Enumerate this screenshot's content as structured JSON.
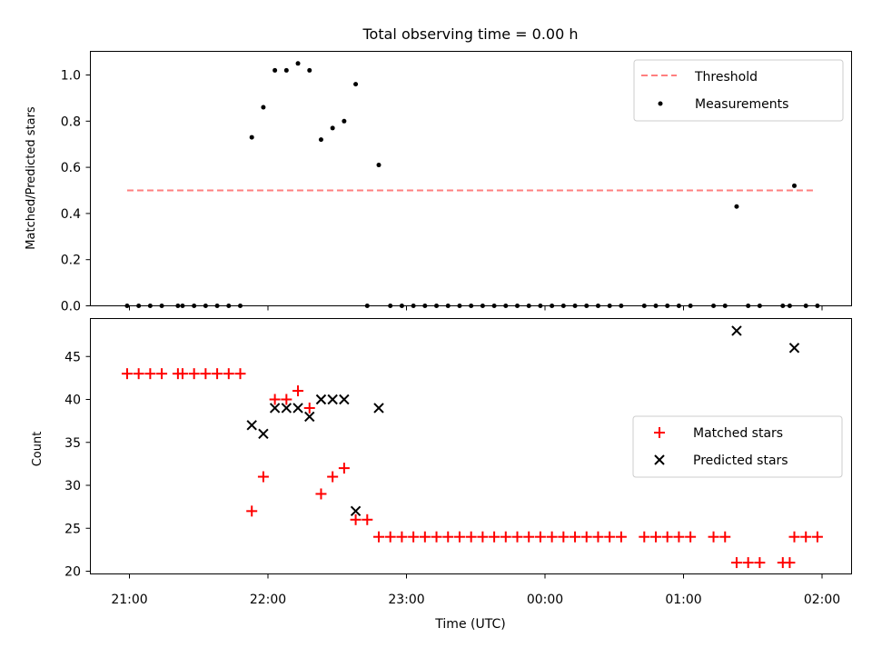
{
  "chart_data": [
    {
      "type": "scatter",
      "title": "Total observing time = 0.00 h",
      "xlabel": "",
      "ylabel": "Matched/Predicted stars",
      "ylim": [
        0,
        1.1
      ],
      "xlim": [
        "20:57",
        "02:07"
      ],
      "x_unit": "minutes after 21:00 UTC",
      "y_ticks": [
        "0.0",
        "0.2",
        "0.4",
        "0.6",
        "0.8",
        "1.0"
      ],
      "grid": false,
      "legend_position": "top-right",
      "threshold": {
        "name": "Threshold",
        "value": 0.5,
        "x_range": [
          -1,
          297
        ],
        "color": "#ff7f7f",
        "style": "dashed"
      },
      "series": [
        {
          "name": "Measurements",
          "color": "#000000",
          "points": [
            [
              -1,
              0
            ],
            [
              4,
              0
            ],
            [
              9,
              0
            ],
            [
              14,
              0
            ],
            [
              21,
              0
            ],
            [
              23,
              0
            ],
            [
              28,
              0
            ],
            [
              33,
              0
            ],
            [
              38,
              0
            ],
            [
              43,
              0
            ],
            [
              48,
              0
            ],
            [
              53,
              0.73
            ],
            [
              58,
              0.86
            ],
            [
              63,
              1.02
            ],
            [
              68,
              1.02
            ],
            [
              73,
              1.05
            ],
            [
              78,
              1.02
            ],
            [
              83,
              0.72
            ],
            [
              88,
              0.77
            ],
            [
              93,
              0.8
            ],
            [
              98,
              0.96
            ],
            [
              103,
              0
            ],
            [
              108,
              0.61
            ],
            [
              113,
              0
            ],
            [
              118,
              0
            ],
            [
              123,
              0
            ],
            [
              128,
              0
            ],
            [
              133,
              0
            ],
            [
              138,
              0
            ],
            [
              143,
              0
            ],
            [
              148,
              0
            ],
            [
              153,
              0
            ],
            [
              158,
              0
            ],
            [
              163,
              0
            ],
            [
              168,
              0
            ],
            [
              173,
              0
            ],
            [
              178,
              0
            ],
            [
              183,
              0
            ],
            [
              188,
              0
            ],
            [
              193,
              0
            ],
            [
              198,
              0
            ],
            [
              203,
              0
            ],
            [
              208,
              0
            ],
            [
              213,
              0
            ],
            [
              223,
              0
            ],
            [
              228,
              0
            ],
            [
              233,
              0
            ],
            [
              238,
              0
            ],
            [
              243,
              0
            ],
            [
              253,
              0
            ],
            [
              258,
              0
            ],
            [
              263,
              0.43
            ],
            [
              268,
              0
            ],
            [
              273,
              0
            ],
            [
              283,
              0
            ],
            [
              286,
              0
            ],
            [
              288,
              0.52
            ],
            [
              293,
              0
            ],
            [
              298,
              0
            ]
          ]
        }
      ]
    },
    {
      "type": "scatter",
      "title": "",
      "xlabel": "Time (UTC)",
      "ylabel": "Count",
      "ylim": [
        19.7,
        49.5
      ],
      "xlim": [
        "20:57",
        "02:07"
      ],
      "x_unit": "minutes after 21:00 UTC",
      "x_ticks": [
        "21:00",
        "22:00",
        "23:00",
        "00:00",
        "01:00",
        "02:00"
      ],
      "y_ticks": [
        "20",
        "25",
        "30",
        "35",
        "40",
        "45"
      ],
      "grid": false,
      "legend_position": "center-right",
      "series": [
        {
          "name": "Matched stars",
          "marker": "plus",
          "color": "#ff0000",
          "points": [
            [
              -1,
              43
            ],
            [
              4,
              43
            ],
            [
              9,
              43
            ],
            [
              14,
              43
            ],
            [
              21,
              43
            ],
            [
              23,
              43
            ],
            [
              28,
              43
            ],
            [
              33,
              43
            ],
            [
              38,
              43
            ],
            [
              43,
              43
            ],
            [
              48,
              43
            ],
            [
              53,
              27
            ],
            [
              58,
              31
            ],
            [
              63,
              40
            ],
            [
              68,
              40
            ],
            [
              73,
              41
            ],
            [
              78,
              39
            ],
            [
              83,
              29
            ],
            [
              88,
              31
            ],
            [
              93,
              32
            ],
            [
              98,
              26
            ],
            [
              103,
              26
            ],
            [
              108,
              24
            ],
            [
              113,
              24
            ],
            [
              118,
              24
            ],
            [
              123,
              24
            ],
            [
              128,
              24
            ],
            [
              133,
              24
            ],
            [
              138,
              24
            ],
            [
              143,
              24
            ],
            [
              148,
              24
            ],
            [
              153,
              24
            ],
            [
              158,
              24
            ],
            [
              163,
              24
            ],
            [
              168,
              24
            ],
            [
              173,
              24
            ],
            [
              178,
              24
            ],
            [
              183,
              24
            ],
            [
              188,
              24
            ],
            [
              193,
              24
            ],
            [
              198,
              24
            ],
            [
              203,
              24
            ],
            [
              208,
              24
            ],
            [
              213,
              24
            ],
            [
              223,
              24
            ],
            [
              228,
              24
            ],
            [
              233,
              24
            ],
            [
              238,
              24
            ],
            [
              243,
              24
            ],
            [
              253,
              24
            ],
            [
              258,
              24
            ],
            [
              263,
              21
            ],
            [
              268,
              21
            ],
            [
              273,
              21
            ],
            [
              283,
              21
            ],
            [
              286,
              21
            ],
            [
              288,
              24
            ],
            [
              293,
              24
            ],
            [
              298,
              24
            ]
          ]
        },
        {
          "name": "Predicted stars",
          "marker": "x",
          "color": "#000000",
          "points": [
            [
              53,
              37
            ],
            [
              58,
              36
            ],
            [
              63,
              39
            ],
            [
              68,
              39
            ],
            [
              73,
              39
            ],
            [
              78,
              38
            ],
            [
              83,
              40
            ],
            [
              88,
              40
            ],
            [
              93,
              40
            ],
            [
              98,
              27
            ],
            [
              108,
              39
            ],
            [
              263,
              48
            ],
            [
              288,
              46
            ]
          ]
        }
      ]
    }
  ]
}
